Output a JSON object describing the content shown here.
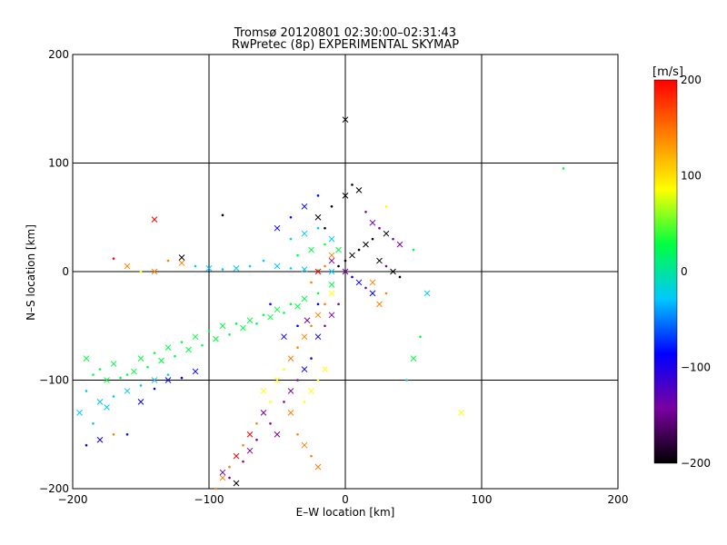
{
  "chart_data": {
    "type": "scatter",
    "title": "Tromsø 20120801 02:30:00–02:31:43",
    "subtitle": "RwPretec (8p) EXPERIMENTAL SKYMAP",
    "xlabel": "E–W location [km]",
    "ylabel": "N–S location [km]",
    "xlim": [
      -200,
      200
    ],
    "ylim": [
      -200,
      200
    ],
    "xticks": [
      -200,
      -100,
      0,
      100,
      200
    ],
    "yticks": [
      -200,
      -100,
      0,
      100,
      200
    ],
    "xtick_labels": [
      "−200",
      "−100",
      "0",
      "100",
      "200"
    ],
    "ytick_labels": [
      "−200",
      "−100",
      "0",
      "100",
      "200"
    ],
    "grid": true,
    "colorbar": {
      "label": "[m/s]",
      "range": [
        -200,
        200
      ],
      "ticks": [
        200,
        100,
        0,
        -100,
        -200
      ],
      "tick_labels": [
        "200",
        "100",
        "0",
        "−100",
        "−200"
      ],
      "colors": [
        "#000000",
        "#7a00a0",
        "#0000ff",
        "#00c8ff",
        "#00ff40",
        "#ffff00",
        "#ff8000",
        "#ff0000"
      ]
    },
    "markers": [
      "x",
      "dot"
    ],
    "points": [
      [
        -190,
        -80,
        20
      ],
      [
        -180,
        -90,
        30
      ],
      [
        -170,
        -85,
        10
      ],
      [
        -160,
        -95,
        25
      ],
      [
        -150,
        -80,
        40
      ],
      [
        -140,
        -75,
        35
      ],
      [
        -130,
        -70,
        20
      ],
      [
        -120,
        -65,
        15
      ],
      [
        -110,
        -60,
        30
      ],
      [
        -100,
        -55,
        25
      ],
      [
        -90,
        -50,
        40
      ],
      [
        -80,
        -48,
        35
      ],
      [
        -70,
        -45,
        20
      ],
      [
        -60,
        -40,
        30
      ],
      [
        -50,
        -35,
        25
      ],
      [
        -40,
        -30,
        40
      ],
      [
        -30,
        -25,
        35
      ],
      [
        -20,
        -20,
        20
      ],
      [
        -10,
        -12,
        30
      ],
      [
        -185,
        -95,
        15
      ],
      [
        -175,
        -100,
        35
      ],
      [
        -165,
        -98,
        20
      ],
      [
        -155,
        -92,
        45
      ],
      [
        -145,
        -88,
        30
      ],
      [
        -135,
        -82,
        25
      ],
      [
        -125,
        -78,
        40
      ],
      [
        -115,
        -72,
        30
      ],
      [
        -105,
        -68,
        20
      ],
      [
        -95,
        -62,
        35
      ],
      [
        -85,
        -58,
        45
      ],
      [
        -75,
        -52,
        30
      ],
      [
        -65,
        -48,
        25
      ],
      [
        -55,
        -42,
        40
      ],
      [
        -45,
        -38,
        30
      ],
      [
        -35,
        -32,
        20
      ],
      [
        -190,
        -110,
        -30
      ],
      [
        -180,
        -120,
        -40
      ],
      [
        -170,
        -115,
        -35
      ],
      [
        -160,
        -110,
        -20
      ],
      [
        -150,
        -105,
        -45
      ],
      [
        -140,
        -100,
        -30
      ],
      [
        -130,
        -95,
        -25
      ],
      [
        -195,
        -130,
        -35
      ],
      [
        -185,
        -140,
        -40
      ],
      [
        -175,
        -125,
        -20
      ],
      [
        -160,
        -150,
        -60
      ],
      [
        -150,
        -120,
        -80
      ],
      [
        -140,
        -108,
        -90
      ],
      [
        -130,
        -100,
        -70
      ],
      [
        -120,
        -98,
        -85
      ],
      [
        -110,
        -92,
        -75
      ],
      [
        -190,
        -160,
        -100
      ],
      [
        -180,
        -155,
        -90
      ],
      [
        -170,
        -150,
        150
      ],
      [
        -60,
        -110,
        60
      ],
      [
        -55,
        -120,
        70
      ],
      [
        -50,
        -100,
        80
      ],
      [
        -45,
        -90,
        90
      ],
      [
        -40,
        -80,
        120
      ],
      [
        -35,
        -70,
        140
      ],
      [
        -30,
        -60,
        160
      ],
      [
        -25,
        -50,
        170
      ],
      [
        -20,
        -40,
        130
      ],
      [
        -15,
        -30,
        150
      ],
      [
        -10,
        -20,
        110
      ],
      [
        -65,
        -140,
        130
      ],
      [
        -70,
        -150,
        180
      ],
      [
        -75,
        -160,
        170
      ],
      [
        -80,
        -170,
        190
      ],
      [
        -85,
        -180,
        160
      ],
      [
        -90,
        -190,
        150
      ],
      [
        -95,
        -200,
        170
      ],
      [
        -60,
        -130,
        -170
      ],
      [
        -55,
        -140,
        -160
      ],
      [
        -50,
        -150,
        -150
      ],
      [
        -45,
        -120,
        -140
      ],
      [
        -40,
        -110,
        -130
      ],
      [
        -35,
        -100,
        -120
      ],
      [
        -30,
        -90,
        -110
      ],
      [
        -25,
        -80,
        -100
      ],
      [
        -20,
        -60,
        -110
      ],
      [
        -15,
        -50,
        -120
      ],
      [
        -10,
        -40,
        -130
      ],
      [
        -5,
        -30,
        -140
      ],
      [
        -80,
        -195,
        -180
      ],
      [
        -85,
        -190,
        -170
      ],
      [
        -90,
        -185,
        -160
      ],
      [
        -75,
        -175,
        -150
      ],
      [
        -70,
        -165,
        -160
      ],
      [
        -65,
        -155,
        -140
      ],
      [
        -40,
        -130,
        120
      ],
      [
        -35,
        -150,
        140
      ],
      [
        -30,
        -160,
        150
      ],
      [
        -25,
        -170,
        130
      ],
      [
        -20,
        -180,
        160
      ],
      [
        -30,
        -120,
        60
      ],
      [
        -25,
        -110,
        70
      ],
      [
        -20,
        -100,
        80
      ],
      [
        -15,
        -90,
        90
      ],
      [
        -60,
        10,
        -40
      ],
      [
        -50,
        5,
        -30
      ],
      [
        -40,
        3,
        -20
      ],
      [
        -30,
        2,
        -10
      ],
      [
        -20,
        1,
        0
      ],
      [
        -10,
        0,
        -20
      ],
      [
        -70,
        5,
        -30
      ],
      [
        -80,
        3,
        -40
      ],
      [
        -90,
        2,
        -35
      ],
      [
        -100,
        3,
        -25
      ],
      [
        -110,
        5,
        -30
      ],
      [
        -120,
        8,
        140
      ],
      [
        -130,
        10,
        160
      ],
      [
        -140,
        0,
        170
      ],
      [
        -150,
        0,
        110
      ],
      [
        -160,
        5,
        150
      ],
      [
        -170,
        12,
        180
      ],
      [
        -140,
        48,
        180
      ],
      [
        -90,
        52,
        -200
      ],
      [
        -120,
        13,
        -200
      ],
      [
        -40,
        30,
        -30
      ],
      [
        -30,
        35,
        -20
      ],
      [
        -20,
        40,
        -40
      ],
      [
        -10,
        30,
        -10
      ],
      [
        -35,
        15,
        30
      ],
      [
        -25,
        20,
        40
      ],
      [
        -15,
        25,
        50
      ],
      [
        -5,
        20,
        20
      ],
      [
        0,
        10,
        -200
      ],
      [
        5,
        15,
        -190
      ],
      [
        10,
        20,
        -180
      ],
      [
        15,
        25,
        -200
      ],
      [
        20,
        30,
        -190
      ],
      [
        25,
        10,
        -180
      ],
      [
        30,
        5,
        -170
      ],
      [
        35,
        0,
        -200
      ],
      [
        40,
        -5,
        -190
      ],
      [
        10,
        -10,
        -110
      ],
      [
        15,
        -15,
        -120
      ],
      [
        20,
        -20,
        -100
      ],
      [
        5,
        -5,
        -90
      ],
      [
        0,
        0,
        -150
      ],
      [
        -5,
        5,
        -180
      ],
      [
        -10,
        10,
        -160
      ],
      [
        -15,
        40,
        -200
      ],
      [
        -20,
        50,
        -190
      ],
      [
        -10,
        60,
        -200
      ],
      [
        0,
        70,
        -180
      ],
      [
        5,
        80,
        -190
      ],
      [
        10,
        75,
        -200
      ],
      [
        15,
        55,
        -150
      ],
      [
        20,
        45,
        -160
      ],
      [
        25,
        40,
        -170
      ],
      [
        30,
        35,
        -180
      ],
      [
        35,
        30,
        -150
      ],
      [
        40,
        25,
        -160
      ],
      [
        50,
        20,
        30
      ],
      [
        60,
        -20,
        -50
      ],
      [
        55,
        -60,
        30
      ],
      [
        50,
        -80,
        40
      ],
      [
        45,
        -100,
        -20
      ],
      [
        85,
        -130,
        60
      ],
      [
        160,
        95,
        40
      ],
      [
        0,
        140,
        -200
      ],
      [
        -20,
        70,
        -100
      ],
      [
        -30,
        60,
        -80
      ],
      [
        -40,
        50,
        -60
      ],
      [
        -50,
        40,
        -90
      ],
      [
        30,
        60,
        110
      ],
      [
        25,
        -30,
        140
      ],
      [
        30,
        -20,
        160
      ],
      [
        20,
        -10,
        150
      ],
      [
        -25,
        -10,
        170
      ],
      [
        -20,
        0,
        180
      ],
      [
        -15,
        5,
        160
      ],
      [
        -10,
        15,
        170
      ],
      [
        -55,
        -30,
        -80
      ],
      [
        -45,
        -60,
        -110
      ],
      [
        -35,
        -50,
        -100
      ],
      [
        -28,
        -45,
        -120
      ],
      [
        -20,
        -30,
        -70
      ]
    ]
  }
}
